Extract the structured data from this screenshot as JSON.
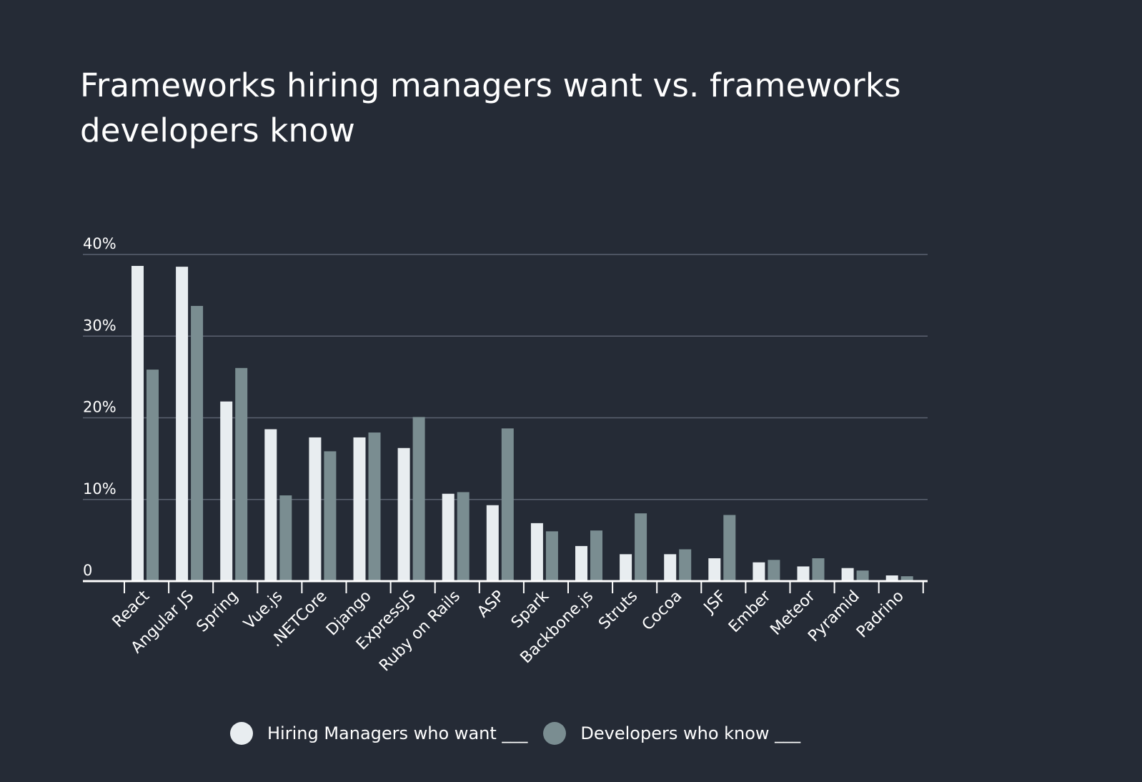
{
  "chart_data": {
    "type": "bar",
    "title": "Frameworks hiring managers want vs. frameworks developers know",
    "xlabel": "",
    "ylabel": "",
    "ylim": [
      0,
      40
    ],
    "yticks": [
      {
        "value": 0,
        "label": "0"
      },
      {
        "value": 10,
        "label": "10%"
      },
      {
        "value": 20,
        "label": "20%"
      },
      {
        "value": 30,
        "label": "30%"
      },
      {
        "value": 40,
        "label": "40%"
      }
    ],
    "grid": true,
    "legend_position": "bottom",
    "categories": [
      "React",
      "Angular JS",
      "Spring",
      "Vue.js",
      ".NETCore",
      "Django",
      "ExpressJS",
      "Ruby on Rails",
      "ASP",
      "Spark",
      "Backbone.js",
      "Struts",
      "Cocoa",
      "JSF",
      "Ember",
      "Meteor",
      "Pyramid",
      "Padrino"
    ],
    "series": [
      {
        "name": "Hiring Managers who want ___",
        "color": "#e8edf0",
        "values": [
          38.6,
          38.5,
          22.0,
          18.6,
          17.6,
          17.6,
          16.3,
          10.7,
          9.3,
          7.1,
          4.3,
          3.3,
          3.3,
          2.8,
          2.3,
          1.8,
          1.6,
          0.7
        ]
      },
      {
        "name": "Developers who know ___",
        "color": "#7a8d91",
        "values": [
          25.9,
          33.7,
          26.1,
          10.5,
          15.9,
          18.2,
          20.1,
          10.9,
          18.7,
          6.1,
          6.2,
          8.3,
          3.9,
          8.1,
          2.6,
          2.8,
          1.3,
          0.6
        ]
      }
    ]
  }
}
